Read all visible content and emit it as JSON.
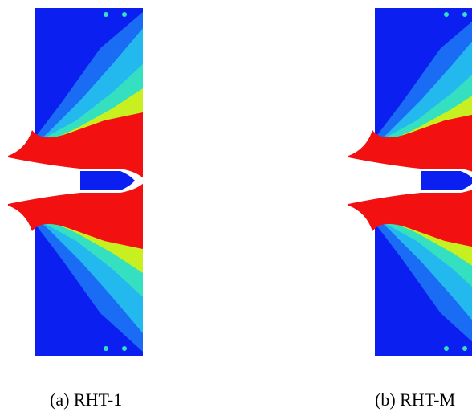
{
  "figure": {
    "panels": [
      {
        "caption": "(a) RHT-1"
      },
      {
        "caption": "(b) RHT-M"
      }
    ]
  }
}
